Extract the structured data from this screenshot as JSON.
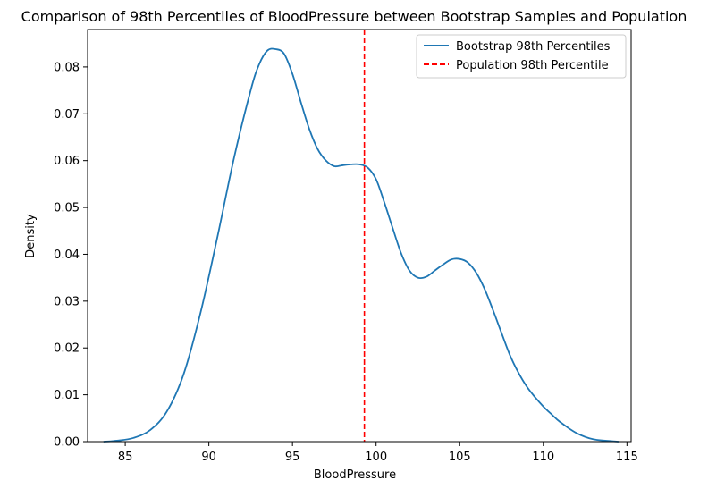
{
  "chart_data": {
    "type": "line",
    "title": "Comparison of 98th Percentiles of BloodPressure between Bootstrap Samples and Population",
    "xlabel": "BloodPressure",
    "ylabel": "Density",
    "xlim": [
      82.75,
      115.25
    ],
    "ylim": [
      0,
      0.088
    ],
    "xticks": [
      85,
      90,
      95,
      100,
      105,
      110,
      115
    ],
    "yticks": [
      0.0,
      0.01,
      0.02,
      0.03,
      0.04,
      0.05,
      0.06,
      0.07,
      0.08
    ],
    "ytick_labels": [
      "0.00",
      "0.01",
      "0.02",
      "0.03",
      "0.04",
      "0.05",
      "0.06",
      "0.07",
      "0.08"
    ],
    "grid": false,
    "legend_position": "top-right",
    "series": [
      {
        "name": "Bootstrap 98th Percentiles",
        "style": "solid",
        "color": "#1f77b4",
        "x": [
          83.7,
          84.5,
          85.5,
          86.5,
          87.5,
          88.5,
          89.5,
          90.5,
          91.5,
          92.5,
          93.0,
          93.5,
          94.0,
          94.5,
          95.0,
          95.5,
          96.0,
          96.5,
          97.0,
          97.5,
          98.0,
          98.5,
          99.0,
          99.5,
          100.0,
          100.5,
          101.0,
          101.5,
          102.0,
          102.5,
          103.0,
          103.5,
          104.0,
          104.5,
          105.0,
          105.5,
          106.0,
          106.5,
          107.0,
          107.5,
          108.0,
          108.5,
          109.0,
          109.5,
          110.0,
          110.5,
          111.0,
          112.0,
          113.0,
          114.5
        ],
        "y": [
          0.0,
          0.0002,
          0.0008,
          0.0025,
          0.0065,
          0.0145,
          0.0275,
          0.0435,
          0.0605,
          0.075,
          0.0805,
          0.0835,
          0.0838,
          0.0828,
          0.0785,
          0.0725,
          0.0668,
          0.0625,
          0.06,
          0.0588,
          0.059,
          0.0592,
          0.0592,
          0.0585,
          0.056,
          0.051,
          0.0455,
          0.0402,
          0.0365,
          0.035,
          0.0352,
          0.0365,
          0.0378,
          0.0389,
          0.039,
          0.0382,
          0.036,
          0.0325,
          0.028,
          0.0232,
          0.0185,
          0.0148,
          0.0118,
          0.0095,
          0.0075,
          0.0058,
          0.0042,
          0.0018,
          0.0005,
          0.0
        ]
      }
    ],
    "reference_lines": [
      {
        "name": "Population 98th Percentile",
        "orientation": "vertical",
        "x": 99.3,
        "style": "dashed",
        "color": "#ff0000"
      }
    ]
  },
  "colors": {
    "axes": "#000000",
    "background": "#ffffff"
  }
}
